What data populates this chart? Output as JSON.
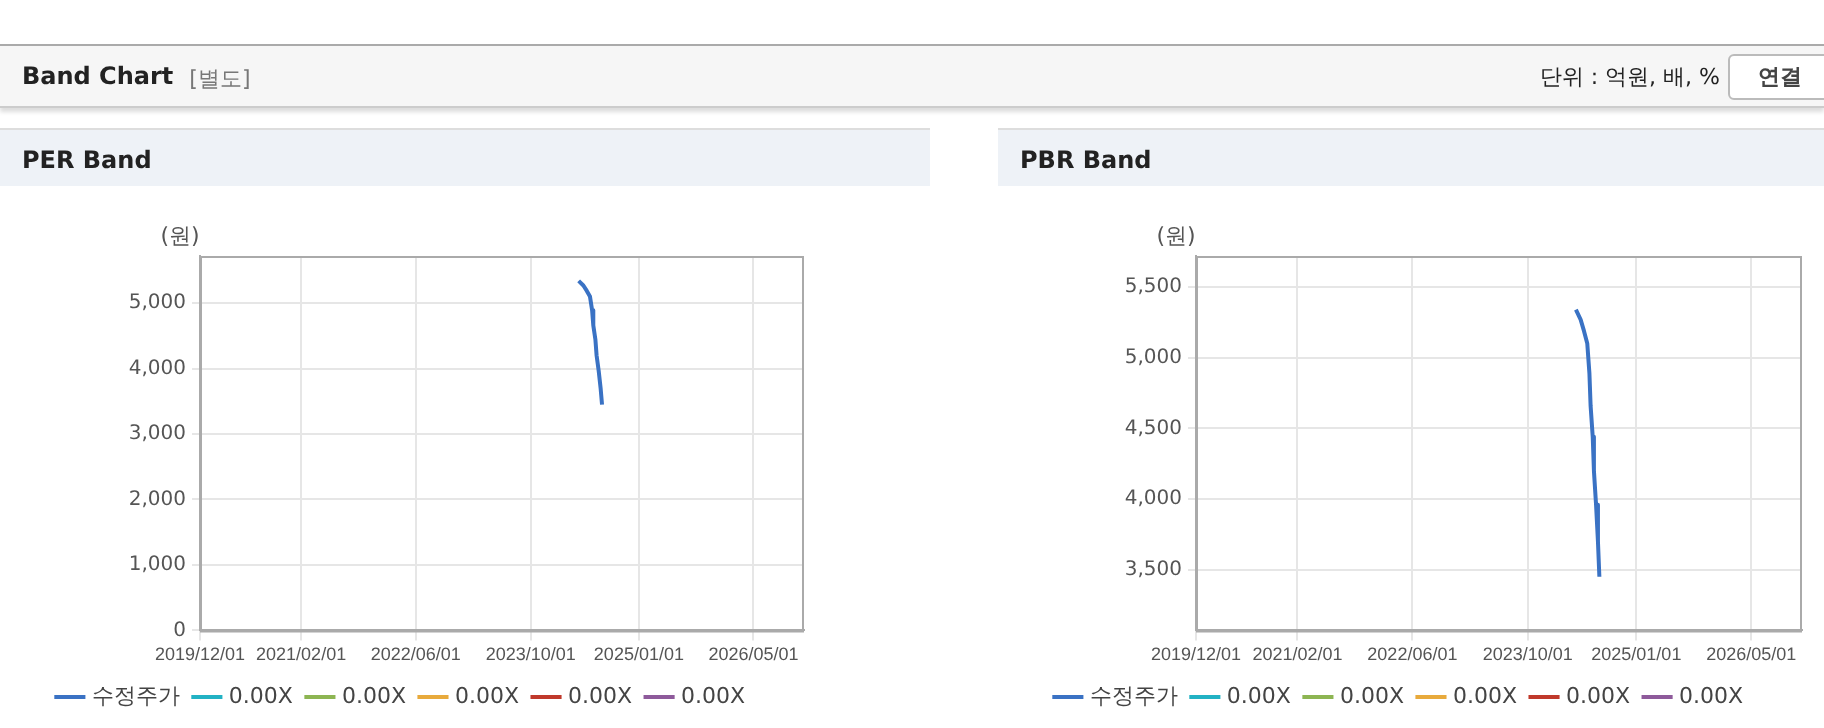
{
  "chart_data": [
    {
      "type": "other",
      "title": "Band Chart",
      "annotations": [
        "[별도]",
        "단위 : 억원, 배, %",
        "연결"
      ]
    },
    {
      "type": "line",
      "title": "PER Band",
      "ylabel": "(원)",
      "x": [
        "2024-04-21",
        "2024-05-11",
        "2024-05-25",
        "2024-06-08",
        "2024-06-17",
        "2024-06-22",
        "2024-07-01",
        "2024-07-06",
        "2024-07-15",
        "2024-07-23",
        "2024-07-29"
      ],
      "series": [
        {
          "name": "수정주가",
          "color": "#3a72c4",
          "values": [
            5340,
            5270,
            5190,
            5100,
            4890,
            4660,
            4440,
            4200,
            3960,
            3700,
            3450
          ]
        },
        {
          "name": "0.00X",
          "color": "#22b2c4",
          "values": [
            null,
            null,
            null,
            null,
            null,
            null,
            null,
            null,
            null,
            null,
            null
          ]
        },
        {
          "name": "0.00X",
          "color": "#8db552",
          "values": [
            null,
            null,
            null,
            null,
            null,
            null,
            null,
            null,
            null,
            null,
            null
          ]
        },
        {
          "name": "0.00X",
          "color": "#e8aa3c",
          "values": [
            null,
            null,
            null,
            null,
            null,
            null,
            null,
            null,
            null,
            null,
            null
          ]
        },
        {
          "name": "0.00X",
          "color": "#c0392b",
          "values": [
            null,
            null,
            null,
            null,
            null,
            null,
            null,
            null,
            null,
            null,
            null
          ]
        },
        {
          "name": "0.00X",
          "color": "#8e5a9b",
          "values": [
            null,
            null,
            null,
            null,
            null,
            null,
            null,
            null,
            null,
            null,
            null
          ]
        }
      ],
      "xlim": [
        "2019-12-01",
        "2026-12-01"
      ],
      "xticks": [
        {
          "value": "2019-12-01",
          "label": "2019/12/01"
        },
        {
          "value": "2021-02-01",
          "label": "2021/02/01"
        },
        {
          "value": "2022-06-01",
          "label": "2022/06/01"
        },
        {
          "value": "2023-10-01",
          "label": "2023/10/01"
        },
        {
          "value": "2025-01-01",
          "label": "2025/01/01"
        },
        {
          "value": "2026-05-01",
          "label": "2026/05/01"
        }
      ],
      "ylim": [
        0,
        5720
      ],
      "yticks": [
        {
          "value": 0,
          "label": "0"
        },
        {
          "value": 1000,
          "label": "1,000"
        },
        {
          "value": 2000,
          "label": "2,000"
        },
        {
          "value": 3000,
          "label": "3,000"
        },
        {
          "value": 4000,
          "label": "4,000"
        },
        {
          "value": 5000,
          "label": "5,000"
        }
      ],
      "grid": true,
      "legend": "bottom",
      "marker": "none"
    },
    {
      "type": "line",
      "title": "PBR Band",
      "ylabel": "(원)",
      "x": [
        "2024-04-21",
        "2024-05-11",
        "2024-05-25",
        "2024-06-08",
        "2024-06-17",
        "2024-06-22",
        "2024-07-01",
        "2024-07-06",
        "2024-07-15",
        "2024-07-23",
        "2024-07-29"
      ],
      "series": [
        {
          "name": "수정주가",
          "color": "#3a72c4",
          "values": [
            5340,
            5270,
            5190,
            5100,
            4890,
            4660,
            4440,
            4200,
            3960,
            3700,
            3450
          ]
        },
        {
          "name": "0.00X",
          "color": "#22b2c4",
          "values": [
            null,
            null,
            null,
            null,
            null,
            null,
            null,
            null,
            null,
            null,
            null
          ]
        },
        {
          "name": "0.00X",
          "color": "#8db552",
          "values": [
            null,
            null,
            null,
            null,
            null,
            null,
            null,
            null,
            null,
            null,
            null
          ]
        },
        {
          "name": "0.00X",
          "color": "#e8aa3c",
          "values": [
            null,
            null,
            null,
            null,
            null,
            null,
            null,
            null,
            null,
            null,
            null
          ]
        },
        {
          "name": "0.00X",
          "color": "#c0392b",
          "values": [
            null,
            null,
            null,
            null,
            null,
            null,
            null,
            null,
            null,
            null,
            null
          ]
        },
        {
          "name": "0.00X",
          "color": "#8e5a9b",
          "values": [
            null,
            null,
            null,
            null,
            null,
            null,
            null,
            null,
            null,
            null,
            null
          ]
        }
      ],
      "xlim": [
        "2019-12-01",
        "2026-12-01"
      ],
      "xticks": [
        {
          "value": "2019-12-01",
          "label": "2019/12/01"
        },
        {
          "value": "2021-02-01",
          "label": "2021/02/01"
        },
        {
          "value": "2022-06-01",
          "label": "2022/06/01"
        },
        {
          "value": "2023-10-01",
          "label": "2023/10/01"
        },
        {
          "value": "2025-01-01",
          "label": "2025/01/01"
        },
        {
          "value": "2026-05-01",
          "label": "2026/05/01"
        }
      ],
      "ylim": [
        3070,
        5720
      ],
      "yticks": [
        {
          "value": 3500,
          "label": "3,500"
        },
        {
          "value": 4000,
          "label": "4,000"
        },
        {
          "value": 4500,
          "label": "4,500"
        },
        {
          "value": 5000,
          "label": "5,000"
        },
        {
          "value": 5500,
          "label": "5,500"
        }
      ],
      "grid": true,
      "legend": "bottom",
      "marker": "none"
    }
  ]
}
